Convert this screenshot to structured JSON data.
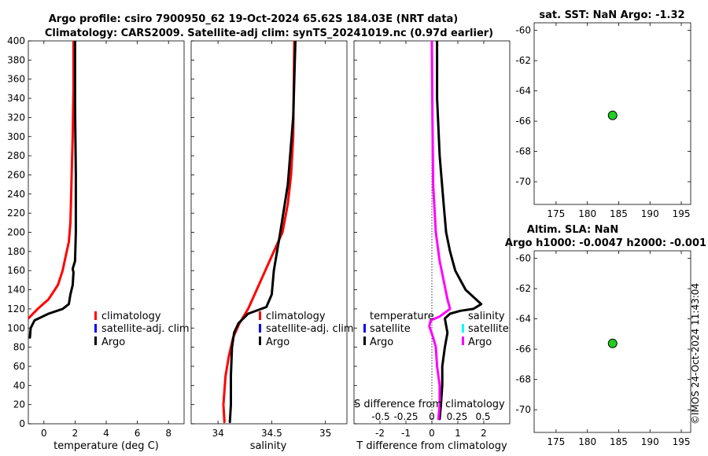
{
  "figure": {
    "title_line1": "Argo profile: csiro 7900950_62 19-Oct-2024 65.62S 184.03E (NRT data)",
    "title_line2": "Climatology: CARS2009. Satellite-adj clim: synTS_20241019.nc (0.97d earlier)",
    "watermark": "©IMOS 24-Oct-2024 11:43:04"
  },
  "colors": {
    "argo": "#000000",
    "climatology": "#ff0000",
    "satellite_adj": "#0000ff",
    "salinity_diff": "#ff00ff",
    "sat_salinity": "#00ffff",
    "dot_fill": "#22cc22"
  },
  "chart_data": [
    {
      "id": "temperature",
      "type": "line",
      "xlabel": "temperature (deg C)",
      "ylabel": "",
      "xlim": [
        -1,
        9
      ],
      "ylim": [
        400,
        0
      ],
      "xticks": [
        0,
        2,
        4,
        6,
        8
      ],
      "yticks": [
        0,
        20,
        40,
        60,
        80,
        100,
        120,
        140,
        160,
        180,
        200,
        220,
        240,
        260,
        280,
        300,
        320,
        340,
        360,
        380,
        400
      ],
      "legend": [
        "climatology",
        "satellite-adj. clim",
        "Argo"
      ],
      "series": [
        {
          "name": "climatology",
          "color": "#ff0000",
          "x": [
            -1.0,
            -0.4,
            0.3,
            0.9,
            1.2,
            1.4,
            1.6,
            1.7,
            1.75,
            1.8,
            1.85,
            1.9,
            1.9
          ],
          "y": [
            110,
            120,
            130,
            145,
            160,
            175,
            190,
            210,
            240,
            270,
            300,
            350,
            400
          ]
        },
        {
          "name": "Argo",
          "color": "#000000",
          "x": [
            -0.9,
            -0.85,
            -0.6,
            0.3,
            1.2,
            1.6,
            1.7,
            1.85,
            1.9,
            1.85,
            2.0,
            2.05,
            2.05,
            2.0,
            2.0
          ],
          "y": [
            90,
            100,
            108,
            115,
            120,
            125,
            135,
            145,
            158,
            162,
            170,
            200,
            260,
            330,
            400
          ]
        }
      ]
    },
    {
      "id": "salinity",
      "type": "line",
      "xlabel": "salinity",
      "ylabel": "",
      "xlim": [
        33.75,
        35.2
      ],
      "ylim": [
        400,
        0
      ],
      "xticks": [
        34,
        34.5,
        35
      ],
      "yticks": [],
      "legend": [
        "climatology",
        "satellite-adj. clim",
        "Argo"
      ],
      "series": [
        {
          "name": "climatology",
          "color": "#ff0000",
          "x": [
            34.06,
            34.05,
            34.07,
            34.1,
            34.14,
            34.2,
            34.28,
            34.36,
            34.44,
            34.52,
            34.6,
            34.65,
            34.68,
            34.7,
            34.71
          ],
          "y": [
            2,
            20,
            50,
            70,
            90,
            105,
            120,
            140,
            160,
            180,
            200,
            230,
            260,
            300,
            400
          ]
        },
        {
          "name": "Argo",
          "color": "#000000",
          "x": [
            34.11,
            34.12,
            34.12,
            34.13,
            34.15,
            34.19,
            34.28,
            34.45,
            34.5,
            34.52,
            34.58,
            34.65,
            34.7,
            34.72
          ],
          "y": [
            2,
            20,
            50,
            80,
            95,
            105,
            115,
            122,
            135,
            160,
            200,
            250,
            320,
            400
          ]
        }
      ]
    },
    {
      "id": "differences",
      "type": "line",
      "xlabel": "T difference from climatology",
      "top_label": "S difference from climatology",
      "ylabel": "",
      "xlim": [
        -3,
        3
      ],
      "ylim": [
        400,
        0
      ],
      "xticks": [
        -2,
        -1,
        0,
        1,
        2
      ],
      "top_ticks": [
        "-0.5",
        "-0.25",
        "0",
        "0.25",
        "0.5"
      ],
      "yticks": [],
      "legend_left_title": "temperature",
      "legend_right_title": "salinity",
      "legend_left": [
        "satellite",
        "Argo"
      ],
      "legend_right": [
        "satellite",
        "Argo"
      ],
      "series": [
        {
          "name": "T Argo",
          "color": "#000000",
          "x": [
            0.3,
            0.35,
            0.4,
            0.4,
            0.5,
            0.6,
            0.5,
            0.7,
            1.1,
            1.6,
            1.9,
            1.3,
            0.9,
            0.7,
            0.55,
            0.45,
            0.3,
            0.2,
            0.2
          ],
          "y": [
            5,
            20,
            40,
            60,
            80,
            95,
            110,
            115,
            118,
            120,
            125,
            140,
            160,
            180,
            200,
            230,
            280,
            340,
            400
          ]
        },
        {
          "name": "S Argo",
          "color": "#ff00ff",
          "x": [
            0.25,
            0.3,
            0.3,
            0.2,
            0.15,
            0.05,
            -0.1,
            -0.05,
            0.3,
            0.7,
            0.6,
            0.45,
            0.3,
            0.15,
            0.05,
            0.02,
            0.0
          ],
          "y": [
            5,
            20,
            40,
            60,
            80,
            90,
            102,
            108,
            112,
            120,
            130,
            150,
            170,
            200,
            250,
            320,
            400
          ]
        }
      ]
    },
    {
      "id": "sst_map",
      "type": "scatter",
      "title": "sat. SST: NaN Argo: -1.32",
      "xlim": [
        171.5,
        196.5
      ],
      "ylim": [
        -71.5,
        -59.5
      ],
      "xticks": [
        175,
        180,
        185,
        190,
        195
      ],
      "yticks": [
        -60,
        -62,
        -64,
        -66,
        -68,
        -70
      ],
      "x": [
        184.03
      ],
      "y": [
        -65.62
      ]
    },
    {
      "id": "sla_map",
      "type": "scatter",
      "title_line1": "Altim. SLA: NaN",
      "title_line2": "Argo h1000: -0.0047 h2000: -0.001",
      "xlim": [
        171.5,
        196.5
      ],
      "ylim": [
        -71.5,
        -59.5
      ],
      "xticks": [
        175,
        180,
        185,
        190,
        195
      ],
      "yticks": [
        -60,
        -62,
        -64,
        -66,
        -68,
        -70
      ],
      "x": [
        184.03
      ],
      "y": [
        -65.62
      ]
    }
  ]
}
